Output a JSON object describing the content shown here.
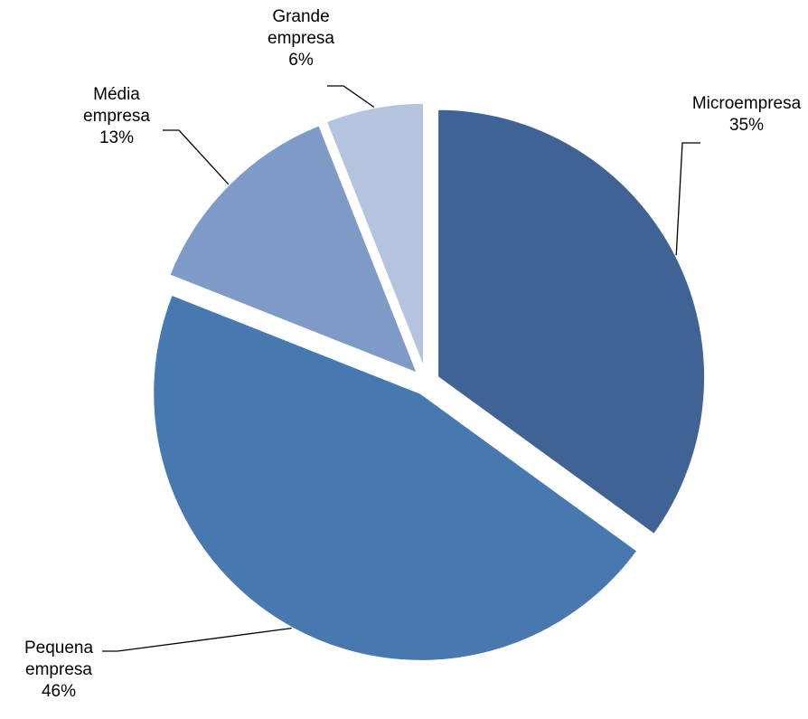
{
  "chart_data": {
    "type": "pie",
    "exploded": true,
    "start_angle_deg": 0,
    "direction": "clockwise",
    "slices": [
      {
        "name_lines": [
          "Microempresa"
        ],
        "value": 35,
        "value_label": "35%",
        "color": "#3E6394"
      },
      {
        "name_lines": [
          "Pequena",
          "empresa"
        ],
        "value": 46,
        "value_label": "46%",
        "color": "#4878B0"
      },
      {
        "name_lines": [
          "Média",
          "empresa"
        ],
        "value": 13,
        "value_label": "13%",
        "color": "#7E9BC7"
      },
      {
        "name_lines": [
          "Grande",
          "empresa"
        ],
        "value": 6,
        "value_label": "6%",
        "color": "#B4C3DE"
      }
    ]
  }
}
